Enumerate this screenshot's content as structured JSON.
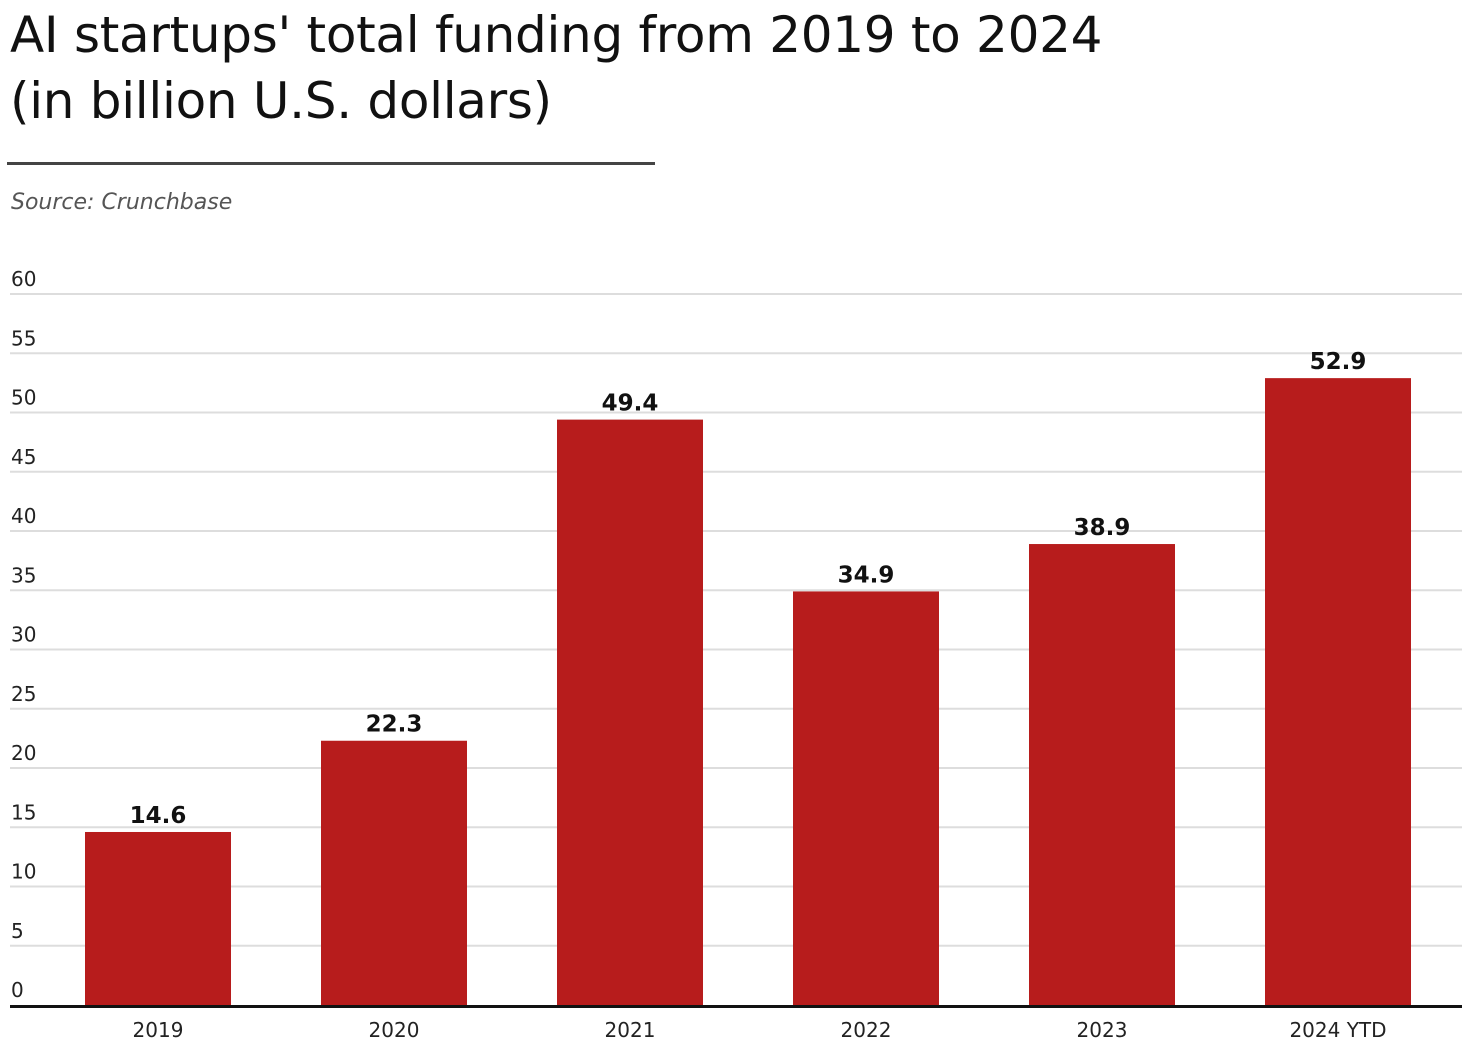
{
  "title_line1": "AI startups' total funding from 2019 to 2024",
  "title_line2": "(in billion U.S. dollars)",
  "source": "Source: Crunchbase",
  "colors": {
    "bar": "#b71c1c",
    "grid": "#dddddd",
    "axis": "#111111"
  },
  "chart_data": {
    "type": "bar",
    "categories": [
      "2019",
      "2020",
      "2021",
      "2022",
      "2023",
      "2024 YTD"
    ],
    "values": [
      14.6,
      22.3,
      49.4,
      34.9,
      38.9,
      52.9
    ],
    "value_labels": [
      "14.6",
      "22.3",
      "49.4",
      "34.9",
      "38.9",
      "52.9"
    ],
    "title": "AI startups' total funding from 2019 to 2024 (in billion U.S. dollars)",
    "xlabel": "",
    "ylabel": "",
    "ylim": [
      0,
      60
    ],
    "yticks": [
      0,
      5,
      10,
      15,
      20,
      25,
      30,
      35,
      40,
      45,
      50,
      55,
      60
    ],
    "ytick_labels": [
      "0",
      "5",
      "10",
      "15",
      "20",
      "25",
      "30",
      "35",
      "40",
      "45",
      "50",
      "55",
      "60"
    ],
    "grid": true,
    "legend": "none"
  }
}
